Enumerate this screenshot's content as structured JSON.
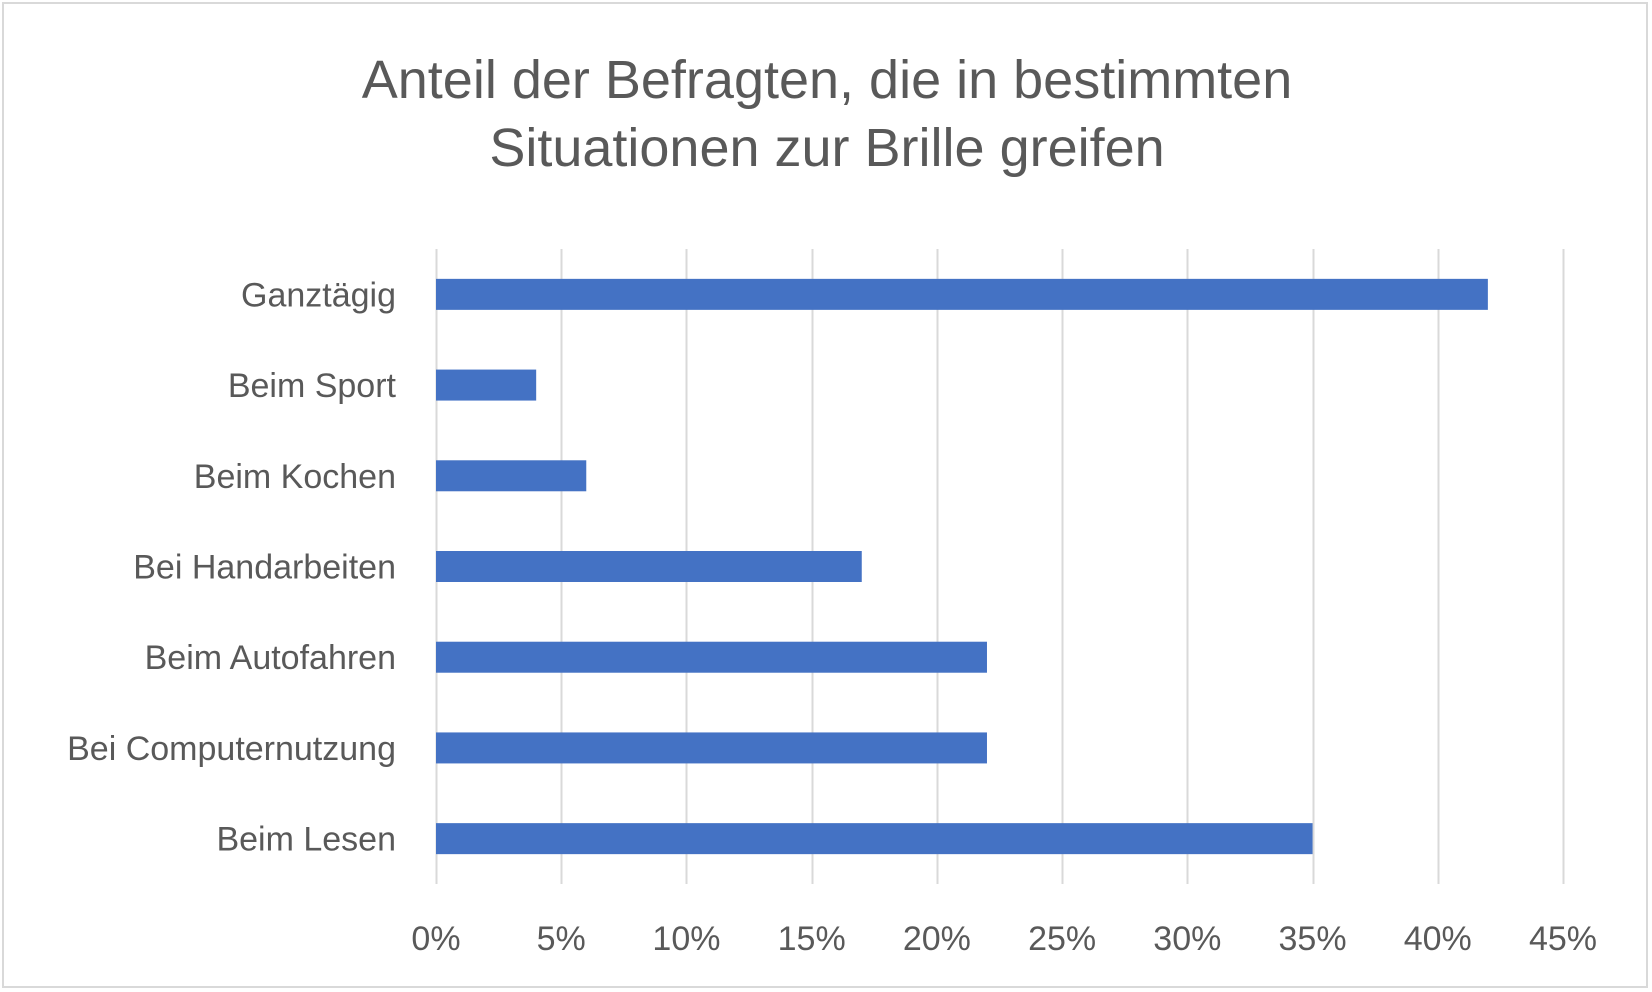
{
  "chart_data": {
    "type": "bar",
    "orientation": "horizontal",
    "title": "Anteil der Befragten, die in bestimmten Situationen zur Brille greifen",
    "title_lines": [
      "Anteil der Befragten, die in bestimmten",
      "Situationen zur Brille greifen"
    ],
    "categories": [
      "Ganztägig",
      "Beim Sport",
      "Beim Kochen",
      "Bei Handarbeiten",
      "Beim Autofahren",
      "Bei Computernutzung",
      "Beim Lesen"
    ],
    "values": [
      0.42,
      0.04,
      0.06,
      0.17,
      0.22,
      0.22,
      0.35
    ],
    "xlim": [
      0,
      0.45
    ],
    "xticks": [
      0,
      0.05,
      0.1,
      0.15,
      0.2,
      0.25,
      0.3,
      0.35,
      0.4,
      0.45
    ],
    "xtick_labels": [
      "0%",
      "5%",
      "10%",
      "15%",
      "20%",
      "25%",
      "30%",
      "35%",
      "40%",
      "45%"
    ],
    "xlabel": "",
    "ylabel": "",
    "grid": "vertical",
    "legend": "none",
    "colors": {
      "bar": "#4472c4",
      "grid": "#d9d9d9",
      "text": "#595959",
      "border": "#d9d9d9"
    }
  }
}
